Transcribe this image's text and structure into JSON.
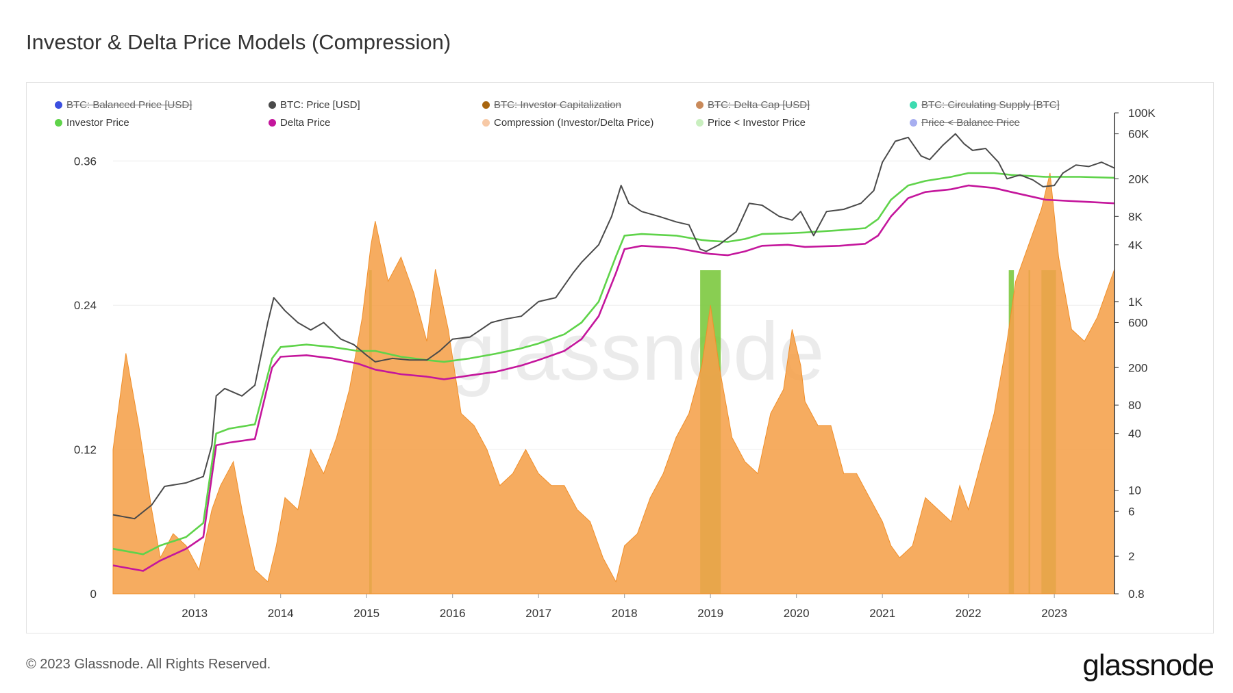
{
  "page": {
    "title": "Investor & Delta Price Models (Compression)",
    "footer": "© 2023 Glassnode. All Rights Reserved.",
    "brand": "glassnode",
    "watermark": "glassnode"
  },
  "legend": [
    {
      "label": "BTC: Balanced Price [USD]",
      "color": "#3b4fe0",
      "active": false
    },
    {
      "label": "BTC: Price [USD]",
      "color": "#4a4a4a",
      "active": true
    },
    {
      "label": "BTC: Investor Capitalization",
      "color": "#a8650f",
      "active": false
    },
    {
      "label": "BTC: Delta Cap [USD]",
      "color": "#c98a5a",
      "active": false
    },
    {
      "label": "BTC: Circulating Supply [BTC]",
      "color": "#3ddbb0",
      "active": false
    },
    {
      "label": "Investor Price",
      "color": "#5fd34a",
      "active": true
    },
    {
      "label": "Delta Price",
      "color": "#c4169c",
      "active": true
    },
    {
      "label": "Compression (Investor/Delta Price)",
      "color": "#f7c9a6",
      "active": true
    },
    {
      "label": "Price < Investor Price",
      "color": "#c9efbf",
      "active": true
    },
    {
      "label": "Price < Balance Price",
      "color": "#a7aef0",
      "active": false
    }
  ],
  "chart_data": {
    "type": "area",
    "title": "Investor & Delta Price Models (Compression)",
    "x_range": [
      2012.05,
      2023.7
    ],
    "x_ticks": [
      "2013",
      "2014",
      "2015",
      "2016",
      "2017",
      "2018",
      "2019",
      "2020",
      "2021",
      "2022",
      "2023"
    ],
    "left_axis": {
      "ticks": [
        "0",
        "0.12",
        "0.24",
        "0.36"
      ],
      "range": [
        0,
        0.4
      ]
    },
    "right_axis": {
      "scale": "log",
      "range": [
        0.8,
        100000
      ],
      "ticks": [
        "0.8",
        "2",
        "6",
        "10",
        "40",
        "80",
        "200",
        "600",
        "1K",
        "4K",
        "8K",
        "20K",
        "60K",
        "100K"
      ]
    },
    "colors": {
      "compression": "#f5a04a",
      "price": "#4a4a4a",
      "investor": "#5fd34a",
      "delta": "#c4169c",
      "signal": "#7cc93f"
    },
    "series": [
      {
        "name": "Compression (Investor/Delta Price)",
        "axis": "left",
        "x": [
          2012.05,
          2012.2,
          2012.35,
          2012.5,
          2012.6,
          2012.75,
          2012.9,
          2013.05,
          2013.2,
          2013.3,
          2013.45,
          2013.55,
          2013.7,
          2013.85,
          2013.95,
          2014.05,
          2014.2,
          2014.35,
          2014.5,
          2014.65,
          2014.8,
          2014.95,
          2015.05,
          2015.1,
          2015.25,
          2015.4,
          2015.55,
          2015.7,
          2015.8,
          2015.95,
          2016.1,
          2016.25,
          2016.4,
          2016.55,
          2016.7,
          2016.85,
          2017.0,
          2017.15,
          2017.3,
          2017.45,
          2017.6,
          2017.75,
          2017.9,
          2018.0,
          2018.15,
          2018.3,
          2018.45,
          2018.6,
          2018.75,
          2018.9,
          2019.0,
          2019.1,
          2019.25,
          2019.4,
          2019.55,
          2019.7,
          2019.85,
          2019.95,
          2020.05,
          2020.1,
          2020.25,
          2020.4,
          2020.55,
          2020.7,
          2020.85,
          2021.0,
          2021.1,
          2021.2,
          2021.35,
          2021.5,
          2021.65,
          2021.8,
          2021.9,
          2022.0,
          2022.15,
          2022.3,
          2022.45,
          2022.55,
          2022.65,
          2022.75,
          2022.85,
          2022.95,
          2023.05,
          2023.2,
          2023.35,
          2023.5,
          2023.65,
          2023.7
        ],
        "values": [
          0.12,
          0.2,
          0.14,
          0.07,
          0.03,
          0.05,
          0.04,
          0.02,
          0.07,
          0.09,
          0.11,
          0.07,
          0.02,
          0.01,
          0.04,
          0.08,
          0.07,
          0.12,
          0.1,
          0.13,
          0.17,
          0.23,
          0.29,
          0.31,
          0.26,
          0.28,
          0.25,
          0.21,
          0.27,
          0.22,
          0.15,
          0.14,
          0.12,
          0.09,
          0.1,
          0.12,
          0.1,
          0.09,
          0.09,
          0.07,
          0.06,
          0.03,
          0.01,
          0.04,
          0.05,
          0.08,
          0.1,
          0.13,
          0.15,
          0.19,
          0.24,
          0.19,
          0.13,
          0.11,
          0.1,
          0.15,
          0.17,
          0.22,
          0.19,
          0.16,
          0.14,
          0.14,
          0.1,
          0.1,
          0.08,
          0.06,
          0.04,
          0.03,
          0.04,
          0.08,
          0.07,
          0.06,
          0.09,
          0.07,
          0.11,
          0.15,
          0.21,
          0.26,
          0.28,
          0.3,
          0.32,
          0.35,
          0.28,
          0.22,
          0.21,
          0.23,
          0.26,
          0.27
        ]
      },
      {
        "name": "BTC: Price [USD]",
        "axis": "right",
        "x": [
          2012.05,
          2012.3,
          2012.5,
          2012.65,
          2012.9,
          2013.1,
          2013.2,
          2013.25,
          2013.35,
          2013.55,
          2013.7,
          2013.85,
          2013.92,
          2014.05,
          2014.2,
          2014.35,
          2014.5,
          2014.7,
          2014.85,
          2015.0,
          2015.1,
          2015.3,
          2015.5,
          2015.7,
          2015.85,
          2016.0,
          2016.2,
          2016.45,
          2016.6,
          2016.8,
          2017.0,
          2017.2,
          2017.4,
          2017.5,
          2017.7,
          2017.85,
          2017.96,
          2018.05,
          2018.2,
          2018.4,
          2018.6,
          2018.75,
          2018.88,
          2018.95,
          2019.1,
          2019.3,
          2019.45,
          2019.6,
          2019.8,
          2019.95,
          2020.05,
          2020.2,
          2020.35,
          2020.55,
          2020.75,
          2020.9,
          2021.0,
          2021.15,
          2021.3,
          2021.45,
          2021.55,
          2021.7,
          2021.85,
          2021.95,
          2022.05,
          2022.2,
          2022.35,
          2022.45,
          2022.6,
          2022.75,
          2022.87,
          2023.0,
          2023.1,
          2023.25,
          2023.4,
          2023.55,
          2023.7
        ],
        "values": [
          5.5,
          5,
          7,
          11,
          12,
          14,
          30,
          100,
          120,
          100,
          130,
          600,
          1100,
          800,
          600,
          500,
          600,
          400,
          350,
          270,
          230,
          250,
          240,
          240,
          300,
          400,
          420,
          600,
          650,
          700,
          1000,
          1100,
          2000,
          2600,
          4000,
          8000,
          17000,
          11000,
          9000,
          8000,
          7000,
          6500,
          3600,
          3400,
          4000,
          5500,
          11000,
          10500,
          8000,
          7300,
          9000,
          5000,
          9000,
          9500,
          11000,
          15000,
          30000,
          50000,
          55000,
          35000,
          32000,
          45000,
          60000,
          47000,
          40000,
          42000,
          30000,
          20000,
          22000,
          19500,
          16500,
          17000,
          23000,
          28000,
          27000,
          30000,
          26000
        ]
      },
      {
        "name": "Investor Price",
        "axis": "right",
        "x": [
          2012.05,
          2012.4,
          2012.6,
          2012.9,
          2013.1,
          2013.25,
          2013.4,
          2013.7,
          2013.9,
          2014.0,
          2014.3,
          2014.6,
          2014.9,
          2015.1,
          2015.4,
          2015.7,
          2015.9,
          2016.2,
          2016.5,
          2016.8,
          2017.0,
          2017.3,
          2017.5,
          2017.7,
          2017.9,
          2018.0,
          2018.2,
          2018.6,
          2018.9,
          2019.0,
          2019.2,
          2019.4,
          2019.6,
          2019.9,
          2020.1,
          2020.5,
          2020.8,
          2020.95,
          2021.1,
          2021.3,
          2021.5,
          2021.8,
          2022.0,
          2022.3,
          2022.5,
          2022.9,
          2023.3,
          2023.7
        ],
        "values": [
          2.4,
          2.1,
          2.6,
          3.2,
          4.5,
          40,
          45,
          50,
          250,
          330,
          350,
          330,
          300,
          300,
          260,
          240,
          230,
          250,
          280,
          320,
          360,
          450,
          600,
          1000,
          3000,
          5000,
          5200,
          5000,
          4500,
          4400,
          4300,
          4600,
          5200,
          5300,
          5400,
          5700,
          6000,
          7500,
          12000,
          17000,
          19000,
          21000,
          23000,
          23000,
          22000,
          21000,
          21000,
          20500
        ]
      },
      {
        "name": "Delta Price",
        "axis": "right",
        "x": [
          2012.05,
          2012.4,
          2012.6,
          2012.9,
          2013.1,
          2013.25,
          2013.4,
          2013.7,
          2013.9,
          2014.0,
          2014.3,
          2014.6,
          2014.9,
          2015.1,
          2015.4,
          2015.7,
          2015.9,
          2016.2,
          2016.5,
          2016.8,
          2017.0,
          2017.3,
          2017.5,
          2017.7,
          2017.9,
          2018.0,
          2018.2,
          2018.6,
          2018.9,
          2019.0,
          2019.2,
          2019.4,
          2019.6,
          2019.9,
          2020.1,
          2020.5,
          2020.8,
          2020.95,
          2021.1,
          2021.3,
          2021.5,
          2021.8,
          2022.0,
          2022.3,
          2022.5,
          2022.9,
          2023.3,
          2023.7
        ],
        "values": [
          1.6,
          1.4,
          1.8,
          2.4,
          3.2,
          30,
          32,
          35,
          200,
          260,
          270,
          250,
          220,
          190,
          170,
          160,
          150,
          165,
          180,
          210,
          240,
          300,
          400,
          700,
          2000,
          3600,
          3900,
          3700,
          3300,
          3200,
          3100,
          3400,
          3900,
          4000,
          3800,
          3900,
          4100,
          5000,
          8000,
          12500,
          14500,
          15500,
          17000,
          16000,
          14500,
          12000,
          11500,
          11000
        ]
      }
    ],
    "signal_bands": [
      [
        2015.03,
        2015.06
      ],
      [
        2018.88,
        2019.12
      ],
      [
        2022.47,
        2022.53
      ],
      [
        2022.7,
        2022.72
      ],
      [
        2022.85,
        2023.02
      ]
    ]
  }
}
